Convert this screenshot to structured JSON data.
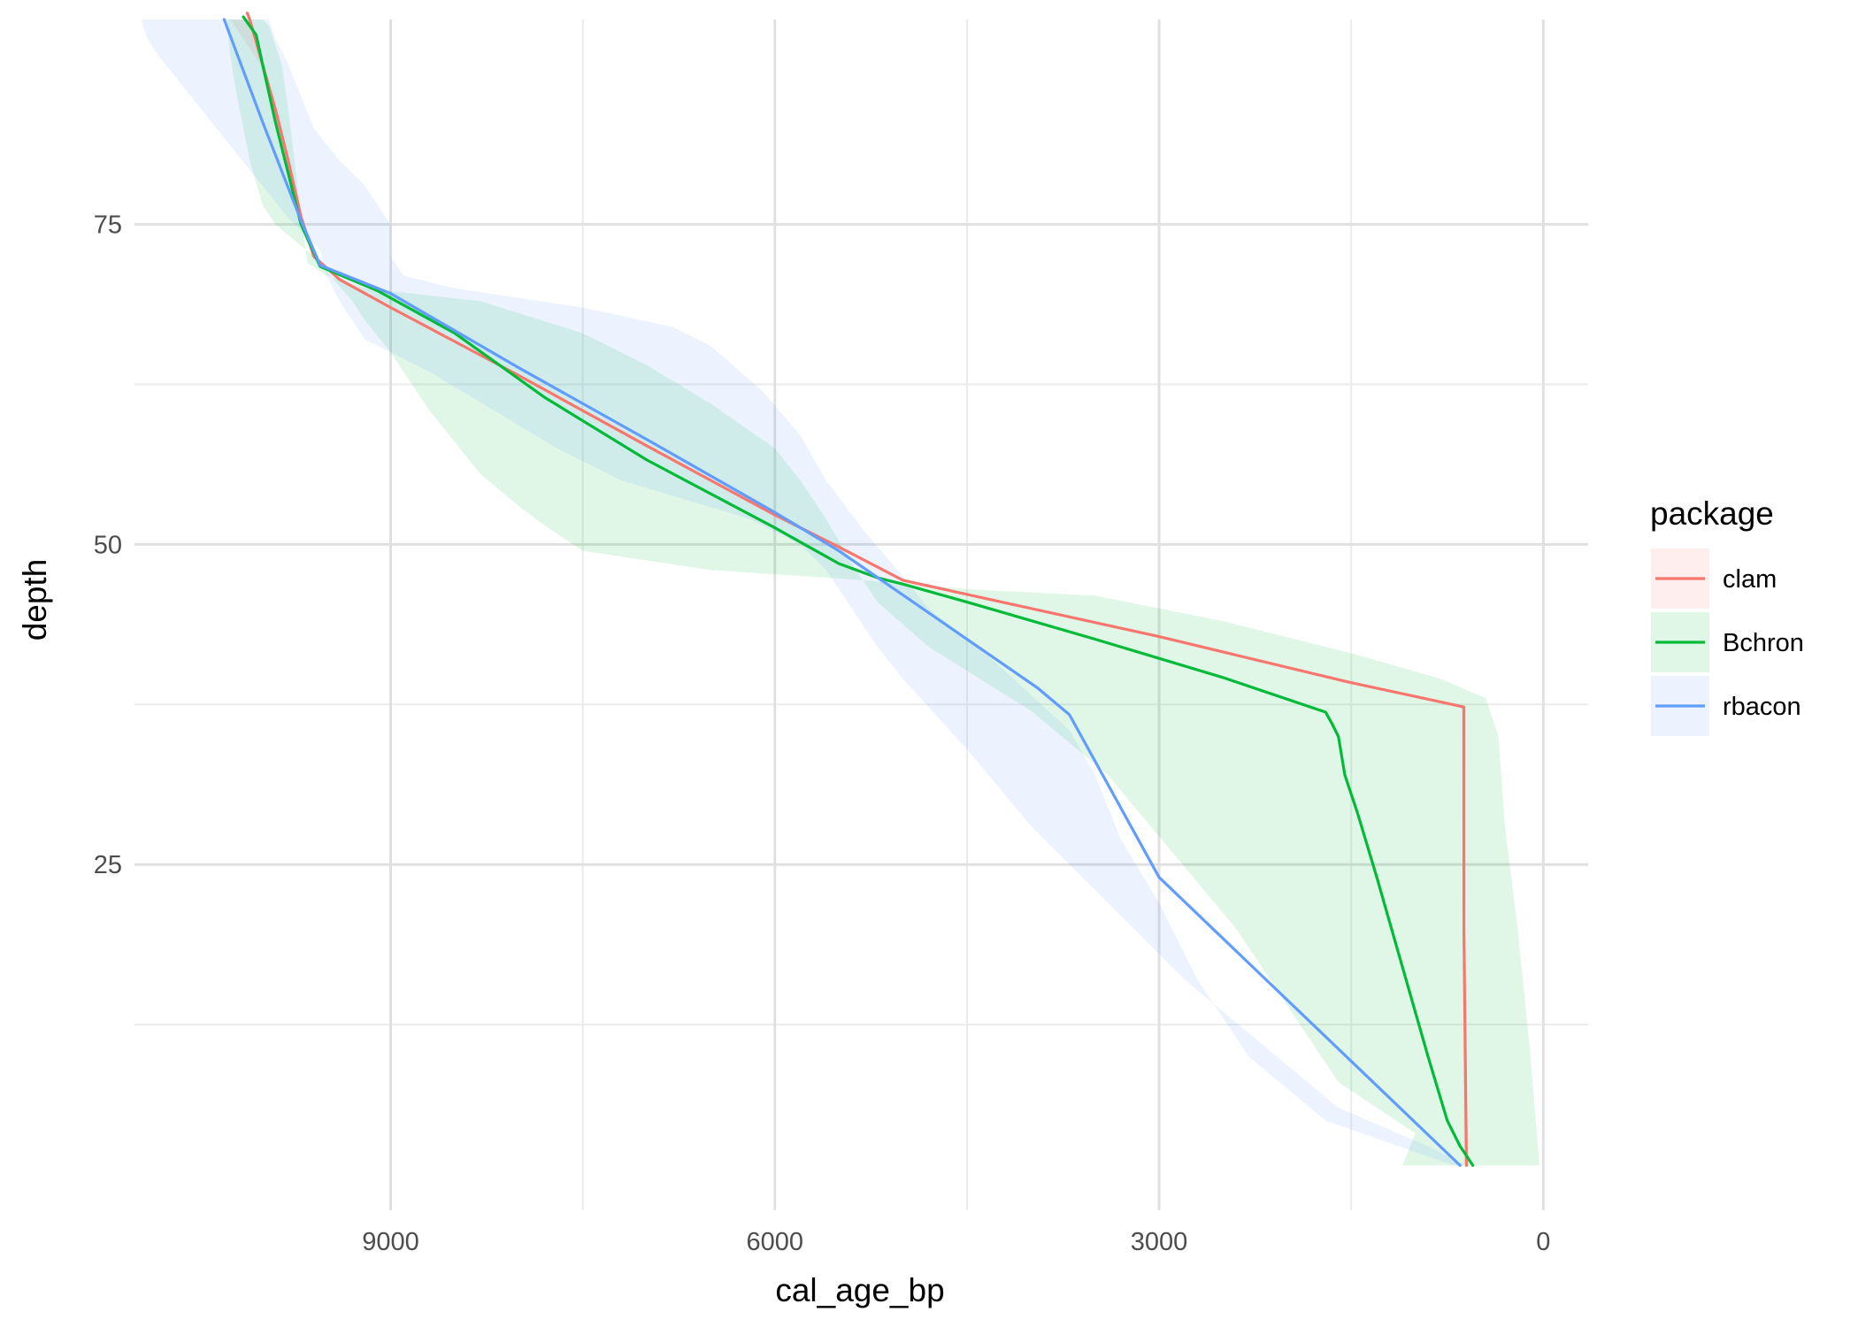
{
  "chart_data": {
    "type": "line",
    "title": "",
    "xlabel": "cal_age_bp",
    "ylabel": "depth",
    "x_reversed": true,
    "y_reversed": true,
    "xlim": [
      11000,
      -350
    ],
    "ylim": [
      91,
      -2
    ],
    "x_ticks": [
      9000,
      6000,
      3000,
      0
    ],
    "x_tick_labels": [
      "9000",
      "6000",
      "3000",
      "0"
    ],
    "y_ticks": [
      25,
      50,
      75
    ],
    "y_tick_labels": [
      "25",
      "50",
      "75"
    ],
    "grid": true,
    "legend": {
      "title": "package",
      "position": "right"
    },
    "series": [
      {
        "name": "clam",
        "color": "#F8766D",
        "points": [
          [
            600,
            1.5
          ],
          [
            620,
            20
          ],
          [
            620,
            37.3
          ],
          [
            850,
            37.8
          ],
          [
            1500,
            39.2
          ],
          [
            3000,
            42.8
          ],
          [
            5000,
            47.2
          ],
          [
            5500,
            49.8
          ],
          [
            6000,
            52.3
          ],
          [
            7000,
            57.7
          ],
          [
            8000,
            63.2
          ],
          [
            9000,
            68.5
          ],
          [
            9400,
            70.7
          ],
          [
            9600,
            72.5
          ],
          [
            9700,
            75.6
          ],
          [
            9800,
            80
          ],
          [
            9900,
            84
          ],
          [
            10000,
            87.5
          ],
          [
            10100,
            91
          ],
          [
            10120,
            91.5
          ]
        ]
      },
      {
        "name": "Bchron",
        "color": "#00BA38",
        "points": [
          [
            550,
            1.5
          ],
          [
            650,
            3
          ],
          [
            750,
            5
          ],
          [
            900,
            10
          ],
          [
            1100,
            17
          ],
          [
            1300,
            24
          ],
          [
            1450,
            29
          ],
          [
            1550,
            32
          ],
          [
            1600,
            35
          ],
          [
            1650,
            36
          ],
          [
            1700,
            36.9
          ],
          [
            2500,
            39.6
          ],
          [
            3500,
            42.6
          ],
          [
            4500,
            45.5
          ],
          [
            5000,
            46.9
          ],
          [
            5200,
            47.4
          ],
          [
            5500,
            48.5
          ],
          [
            6000,
            51.3
          ],
          [
            7000,
            56.6
          ],
          [
            7800,
            61.5
          ],
          [
            8500,
            66.5
          ],
          [
            9100,
            69.8
          ],
          [
            9550,
            71.7
          ],
          [
            9700,
            75
          ],
          [
            9800,
            79
          ],
          [
            9900,
            83
          ],
          [
            10000,
            87.5
          ],
          [
            10050,
            89.8
          ],
          [
            10150,
            91.2
          ]
        ]
      },
      {
        "name": "rbacon",
        "color": "#619CFF",
        "points": [
          [
            650,
            1.5
          ],
          [
            3000,
            24
          ],
          [
            3700,
            36.7
          ],
          [
            3950,
            38.8
          ],
          [
            5500,
            49.5
          ],
          [
            6000,
            52.5
          ],
          [
            7000,
            58.2
          ],
          [
            8000,
            63.8
          ],
          [
            9000,
            69.6
          ],
          [
            9550,
            71.8
          ],
          [
            9700,
            75.3
          ],
          [
            10000,
            83
          ],
          [
            10300,
            91
          ]
        ]
      }
    ],
    "ribbons": [
      {
        "name": "clam",
        "color": "#F8766D",
        "upper": [
          [
            600,
            1.5
          ],
          [
            620,
            37.3
          ],
          [
            850,
            37.8
          ],
          [
            1500,
            39.2
          ],
          [
            3000,
            42.8
          ],
          [
            5000,
            47.2
          ],
          [
            5500,
            49.8
          ],
          [
            6000,
            52.3
          ],
          [
            7000,
            57.7
          ],
          [
            8000,
            63.2
          ],
          [
            9000,
            68.5
          ],
          [
            9400,
            70.7
          ],
          [
            9600,
            72.5
          ],
          [
            9700,
            75.6
          ],
          [
            9800,
            80
          ],
          [
            9900,
            84
          ],
          [
            10000,
            87.5
          ],
          [
            10100,
            91
          ]
        ],
        "lower": [
          [
            620,
            1.5
          ],
          [
            640,
            37.3
          ],
          [
            870,
            37.8
          ],
          [
            1520,
            39.2
          ],
          [
            3020,
            42.8
          ],
          [
            5020,
            47.2
          ],
          [
            5520,
            49.8
          ],
          [
            6020,
            52.3
          ],
          [
            7020,
            57.7
          ],
          [
            8020,
            63.2
          ],
          [
            9020,
            68.5
          ],
          [
            9420,
            70.7
          ],
          [
            9620,
            72.5
          ],
          [
            9720,
            75.6
          ],
          [
            9820,
            80
          ],
          [
            9920,
            84
          ],
          [
            10020,
            87.5
          ],
          [
            10250,
            91
          ]
        ]
      },
      {
        "name": "Bchron",
        "color": "#00BA38",
        "upper": [
          [
            30,
            1.5
          ],
          [
            100,
            10
          ],
          [
            200,
            20
          ],
          [
            300,
            28
          ],
          [
            350,
            35
          ],
          [
            450,
            38
          ],
          [
            800,
            39.5
          ],
          [
            1500,
            41.5
          ],
          [
            2500,
            44
          ],
          [
            3500,
            46
          ],
          [
            4500,
            46.5
          ],
          [
            5000,
            47
          ],
          [
            6500,
            48
          ],
          [
            7500,
            49.5
          ],
          [
            7800,
            51.5
          ],
          [
            8000,
            53
          ],
          [
            8300,
            55.5
          ],
          [
            8500,
            58
          ],
          [
            8700,
            60.5
          ],
          [
            9000,
            65
          ],
          [
            9200,
            67.5
          ],
          [
            9300,
            69
          ],
          [
            9600,
            72.5
          ],
          [
            9900,
            75
          ],
          [
            10000,
            76.5
          ],
          [
            10100,
            80
          ],
          [
            10200,
            85
          ],
          [
            10250,
            88
          ],
          [
            10280,
            91
          ]
        ],
        "lower": [
          [
            1100,
            1.5
          ],
          [
            1000,
            4
          ],
          [
            1600,
            8
          ],
          [
            2000,
            14
          ],
          [
            2400,
            20
          ],
          [
            2900,
            26
          ],
          [
            3400,
            32
          ],
          [
            4000,
            37
          ],
          [
            4800,
            42
          ],
          [
            5200,
            45.5
          ],
          [
            5400,
            48.5
          ],
          [
            5600,
            52
          ],
          [
            5800,
            55
          ],
          [
            6000,
            57.5
          ],
          [
            6500,
            61
          ],
          [
            7000,
            64
          ],
          [
            7500,
            66.5
          ],
          [
            8300,
            69
          ],
          [
            9200,
            70
          ],
          [
            9500,
            71
          ],
          [
            9650,
            72
          ],
          [
            9700,
            75.6
          ],
          [
            9750,
            80
          ],
          [
            9800,
            84
          ],
          [
            9850,
            87.5
          ],
          [
            9900,
            89
          ],
          [
            9950,
            90.5
          ],
          [
            10000,
            91
          ]
        ]
      },
      {
        "name": "rbacon",
        "color": "#619CFF",
        "upper": [
          [
            600,
            1.5
          ],
          [
            900,
            3
          ],
          [
            1600,
            6
          ],
          [
            2200,
            11
          ],
          [
            2800,
            16
          ],
          [
            3300,
            21
          ],
          [
            4000,
            28
          ],
          [
            4500,
            34
          ],
          [
            5000,
            39.5
          ],
          [
            5200,
            42
          ],
          [
            5400,
            45
          ],
          [
            5600,
            48
          ],
          [
            5800,
            50
          ],
          [
            6200,
            52
          ],
          [
            6700,
            53.5
          ],
          [
            7200,
            55
          ],
          [
            7700,
            57.5
          ],
          [
            8200,
            60.5
          ],
          [
            8700,
            63.5
          ],
          [
            9200,
            66
          ],
          [
            9400,
            69
          ],
          [
            9500,
            71
          ],
          [
            9550,
            73
          ],
          [
            9800,
            75.5
          ],
          [
            10000,
            78
          ],
          [
            10200,
            80.5
          ],
          [
            10400,
            83
          ],
          [
            10600,
            85.5
          ],
          [
            10800,
            88
          ],
          [
            10900,
            89.5
          ],
          [
            10950,
            91
          ]
        ],
        "lower": [
          [
            700,
            1.5
          ],
          [
            1700,
            5
          ],
          [
            2300,
            10
          ],
          [
            2700,
            16
          ],
          [
            3000,
            22
          ],
          [
            3300,
            27
          ],
          [
            3500,
            32
          ],
          [
            3700,
            35.5
          ],
          [
            4300,
            41
          ],
          [
            4800,
            45
          ],
          [
            5000,
            47.5
          ],
          [
            5300,
            51
          ],
          [
            5600,
            55
          ],
          [
            5800,
            58.5
          ],
          [
            6100,
            62
          ],
          [
            6500,
            65.5
          ],
          [
            6800,
            67
          ],
          [
            7500,
            68.5
          ],
          [
            8500,
            70
          ],
          [
            8900,
            71
          ],
          [
            9000,
            72.5
          ],
          [
            9000,
            75
          ],
          [
            9200,
            78
          ],
          [
            9400,
            80
          ],
          [
            9600,
            82.5
          ],
          [
            9700,
            85
          ],
          [
            9800,
            87.5
          ],
          [
            9900,
            89.5
          ],
          [
            9950,
            91
          ]
        ]
      }
    ]
  }
}
